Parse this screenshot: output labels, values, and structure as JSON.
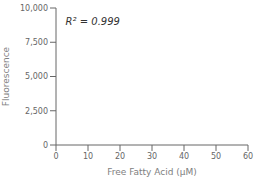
{
  "chart_data": {
    "type": "line",
    "xlabel": "Free Fatty Acid (µM)",
    "ylabel": "Fluorescence",
    "annotation": "R² = 0.999",
    "xlim": [
      0,
      60
    ],
    "ylim": [
      0,
      10000
    ],
    "xticks": [
      0,
      10,
      20,
      30,
      40,
      50,
      60
    ],
    "yticks": [
      0,
      {
        "value": 2500,
        "label": "2,500"
      },
      {
        "value": 5000,
        "label": "5,000"
      },
      {
        "value": 7500,
        "label": "7,500"
      },
      {
        "value": 10000,
        "label": "10,000"
      }
    ],
    "grid": false
  }
}
